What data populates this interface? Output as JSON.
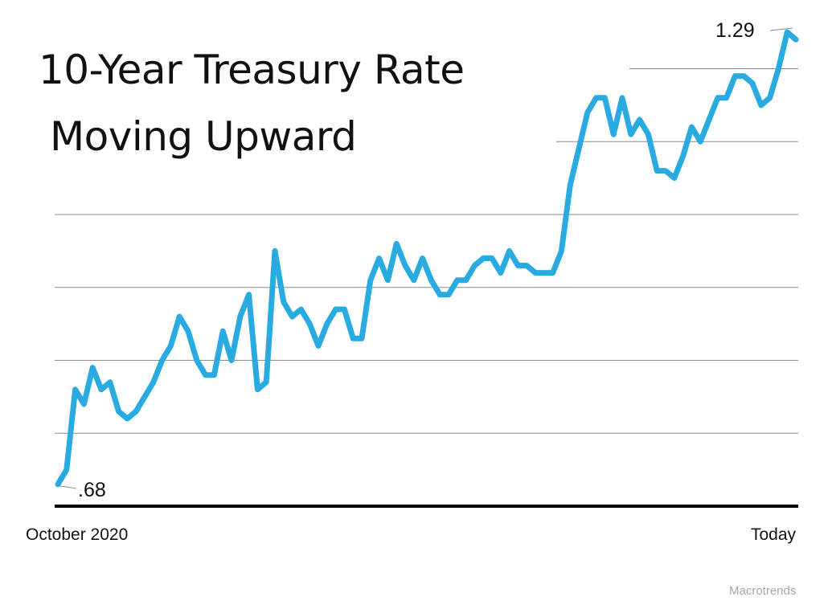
{
  "chart_data": {
    "type": "line",
    "title": "10-Year Treasury Rate",
    "subtitle": "Moving Upward",
    "x_start_label": "October 2020",
    "x_end_label": "Today",
    "source": "Macrotrends",
    "start_value_label": ".68",
    "end_value_label": "1.29",
    "ylim": [
      0.65,
      1.32
    ],
    "gridlines": [
      0.75,
      0.85,
      0.95,
      1.05,
      1.15,
      1.25
    ],
    "line_color": "#29abe2",
    "series": [
      {
        "values": [
          0.68,
          0.7,
          0.81,
          0.79,
          0.84,
          0.81,
          0.82,
          0.78,
          0.77,
          0.78,
          0.8,
          0.82,
          0.85,
          0.87,
          0.91,
          0.89,
          0.85,
          0.83,
          0.83,
          0.89,
          0.85,
          0.91,
          0.94,
          0.81,
          0.82,
          1.0,
          0.93,
          0.91,
          0.92,
          0.9,
          0.87,
          0.9,
          0.92,
          0.92,
          0.88,
          0.88,
          0.96,
          0.99,
          0.96,
          1.01,
          0.98,
          0.96,
          0.99,
          0.96,
          0.94,
          0.94,
          0.96,
          0.96,
          0.98,
          0.99,
          0.99,
          0.97,
          1.0,
          0.98,
          0.98,
          0.97,
          0.97,
          0.97,
          1.0,
          1.09,
          1.14,
          1.19,
          1.21,
          1.21,
          1.16,
          1.21,
          1.16,
          1.18,
          1.16,
          1.11,
          1.11,
          1.1,
          1.13,
          1.17,
          1.15,
          1.18,
          1.21,
          1.21,
          1.24,
          1.24,
          1.23,
          1.2,
          1.21,
          1.25,
          1.3,
          1.29
        ]
      }
    ]
  }
}
